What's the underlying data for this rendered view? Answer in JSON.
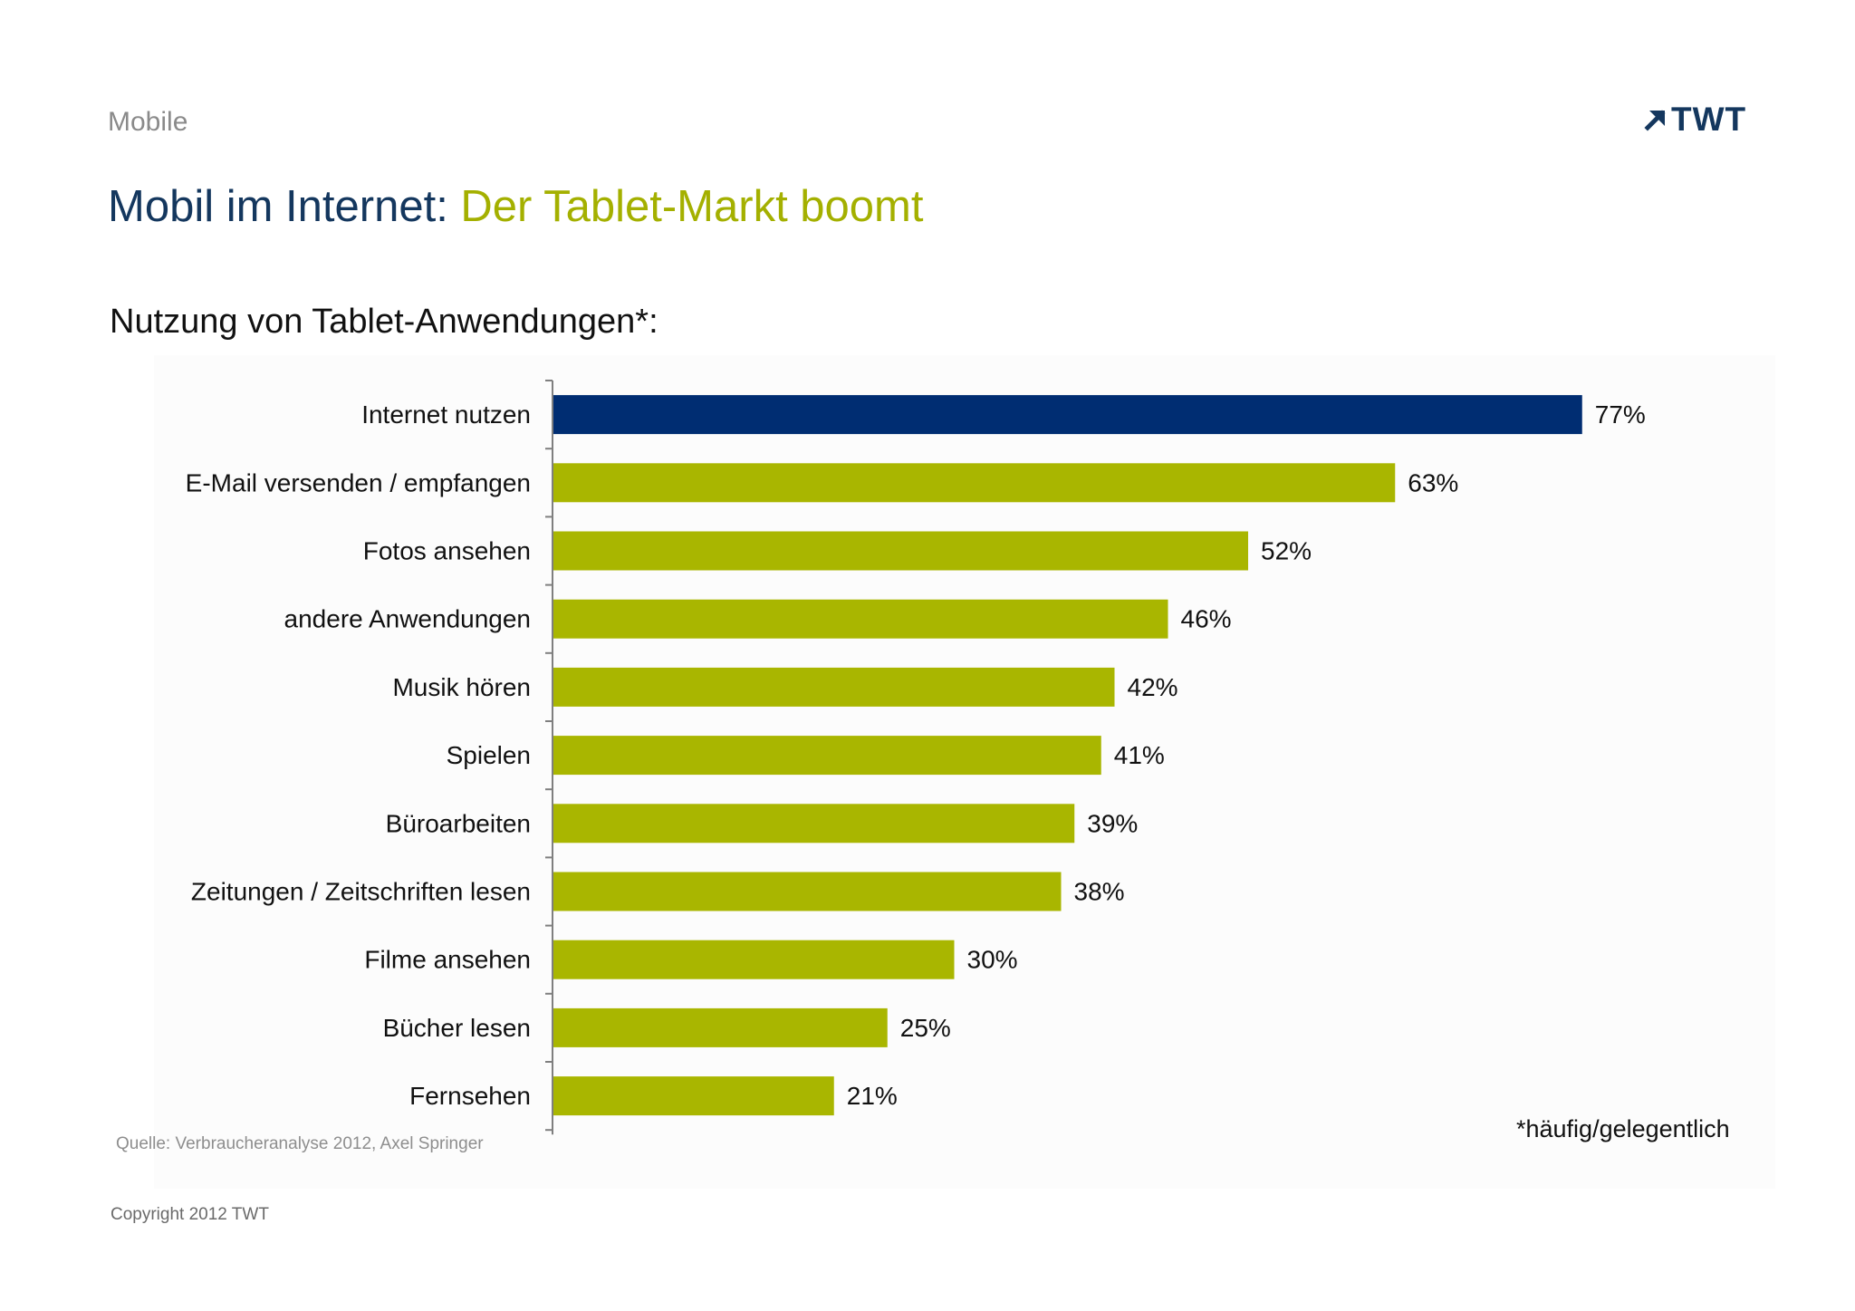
{
  "header": {
    "section_label": "Mobile",
    "title_main": "Mobil im Internet: ",
    "title_accent": "Der Tablet-Markt boomt",
    "logo_text": "TWT",
    "logo_icon": "arrow-up-right-icon"
  },
  "colors": {
    "navy": "#002d72",
    "lime": "#a9b600",
    "title_blue": "#14375e",
    "title_green": "#a4b000",
    "axis": "#7f7f7f"
  },
  "chart_data": {
    "type": "bar",
    "orientation": "horizontal",
    "title": "Nutzung von Tablet-Anwendungen*:",
    "categories": [
      "Internet nutzen",
      "E-Mail versenden / empfangen",
      "Fotos ansehen",
      "andere Anwendungen",
      "Musik hören",
      "Spielen",
      "Büroarbeiten",
      "Zeitungen / Zeitschriften lesen",
      "Filme ansehen",
      "Bücher lesen",
      "Fernsehen"
    ],
    "values": [
      77,
      63,
      52,
      46,
      42,
      41,
      39,
      38,
      30,
      25,
      21
    ],
    "value_labels": [
      "77%",
      "63%",
      "52%",
      "46%",
      "42%",
      "41%",
      "39%",
      "38%",
      "30%",
      "25%",
      "21%"
    ],
    "highlight_index": 0,
    "unit": "%",
    "xlim": [
      0,
      100
    ],
    "grid": false
  },
  "footer": {
    "source": "Quelle: Verbraucheranalyse 2012,  Axel Springer",
    "footnote": "*häufig/gelegentlich",
    "copyright": "Copyright 2012 TWT"
  }
}
